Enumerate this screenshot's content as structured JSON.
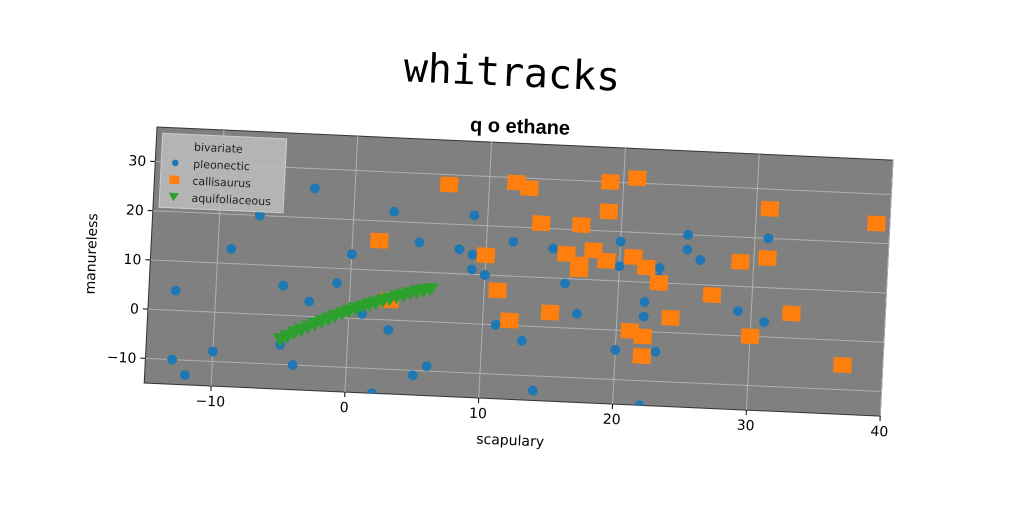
{
  "chart_data": {
    "type": "scatter",
    "title": "whitracks",
    "subtitle": "q o ethane",
    "xlabel": "scapulary",
    "ylabel": "manureless",
    "xlim": [
      -15,
      40
    ],
    "ylim": [
      -15,
      37
    ],
    "xticks": [
      -10,
      0,
      10,
      20,
      30,
      40
    ],
    "yticks": [
      -10,
      0,
      10,
      20,
      30
    ],
    "grid": true,
    "legend_position": "top-left",
    "background": "#808080",
    "series": [
      {
        "name": "bivariate",
        "marker": "none",
        "color": "#808080",
        "points": []
      },
      {
        "name": "pleonectic",
        "marker": "circle",
        "color": "#1f77b4",
        "points": [
          [
            -13,
            4
          ],
          [
            -9,
            13
          ],
          [
            -13,
            -10
          ],
          [
            -12,
            -13
          ],
          [
            -10,
            -8
          ],
          [
            -7,
            20
          ],
          [
            -5,
            6
          ],
          [
            -3,
            26
          ],
          [
            -4,
            -10
          ],
          [
            -5,
            -6
          ],
          [
            -3,
            3
          ],
          [
            -1,
            7
          ],
          [
            0,
            13
          ],
          [
            3,
            22
          ],
          [
            5,
            16
          ],
          [
            8,
            15
          ],
          [
            9,
            14
          ],
          [
            9,
            11
          ],
          [
            9,
            22
          ],
          [
            10,
            10
          ],
          [
            12,
            17
          ],
          [
            11,
            0
          ],
          [
            13,
            -3
          ],
          [
            3,
            -2
          ],
          [
            1,
            1
          ],
          [
            5,
            -11
          ],
          [
            6,
            -9
          ],
          [
            7,
            -16
          ],
          [
            2,
            -15
          ],
          [
            14,
            -13
          ],
          [
            16,
            9
          ],
          [
            17,
            3
          ],
          [
            20,
            18
          ],
          [
            20,
            13
          ],
          [
            22,
            6
          ],
          [
            22,
            3
          ],
          [
            23,
            -4
          ],
          [
            23,
            13
          ],
          [
            23,
            11
          ],
          [
            20,
            -4
          ],
          [
            25,
            17
          ],
          [
            26,
            15
          ],
          [
            25,
            20
          ],
          [
            29,
            5
          ],
          [
            31,
            20
          ],
          [
            31,
            3
          ],
          [
            22,
            -15
          ],
          [
            15,
            16
          ]
        ]
      },
      {
        "name": "callisaurus",
        "marker": "square",
        "color": "#ff7f0e",
        "points": [
          [
            7,
            28
          ],
          [
            12,
            29
          ],
          [
            13,
            28
          ],
          [
            14,
            21
          ],
          [
            17,
            21
          ],
          [
            19,
            24
          ],
          [
            19,
            30
          ],
          [
            21,
            31
          ],
          [
            31,
            26
          ],
          [
            39,
            24
          ],
          [
            2,
            16
          ],
          [
            10,
            14
          ],
          [
            11,
            7
          ],
          [
            12,
            1
          ],
          [
            17,
            13
          ],
          [
            16,
            15
          ],
          [
            17,
            12
          ],
          [
            18,
            16
          ],
          [
            19,
            14
          ],
          [
            21,
            15
          ],
          [
            22,
            13
          ],
          [
            23,
            10
          ],
          [
            27,
            8
          ],
          [
            29,
            15
          ],
          [
            31,
            16
          ],
          [
            33,
            5
          ],
          [
            37,
            -5
          ],
          [
            30,
            0
          ],
          [
            24,
            3
          ],
          [
            22,
            -1
          ],
          [
            21,
            0
          ],
          [
            22,
            -5
          ],
          [
            15,
            3
          ],
          [
            3,
            4
          ]
        ]
      },
      {
        "name": "aquifoliaceous",
        "marker": "triangle-down",
        "color": "#2ca02c",
        "points": [
          [
            -5,
            -5
          ],
          [
            -4.5,
            -4.3
          ],
          [
            -4,
            -3.5
          ],
          [
            -3.5,
            -2.9
          ],
          [
            -3,
            -2.2
          ],
          [
            -2.5,
            -1.6
          ],
          [
            -2,
            -1.0
          ],
          [
            -1.5,
            -0.4
          ],
          [
            -1,
            0.2
          ],
          [
            -0.5,
            0.8
          ],
          [
            0,
            1.4
          ],
          [
            0.5,
            1.9
          ],
          [
            1,
            2.4
          ],
          [
            1.5,
            2.9
          ],
          [
            2,
            3.3
          ],
          [
            2.5,
            3.8
          ],
          [
            3,
            4.2
          ],
          [
            3.5,
            4.7
          ],
          [
            4,
            5.1
          ],
          [
            4.5,
            5.5
          ],
          [
            5,
            5.9
          ],
          [
            5.5,
            6.2
          ],
          [
            6,
            6.5
          ]
        ]
      }
    ]
  }
}
